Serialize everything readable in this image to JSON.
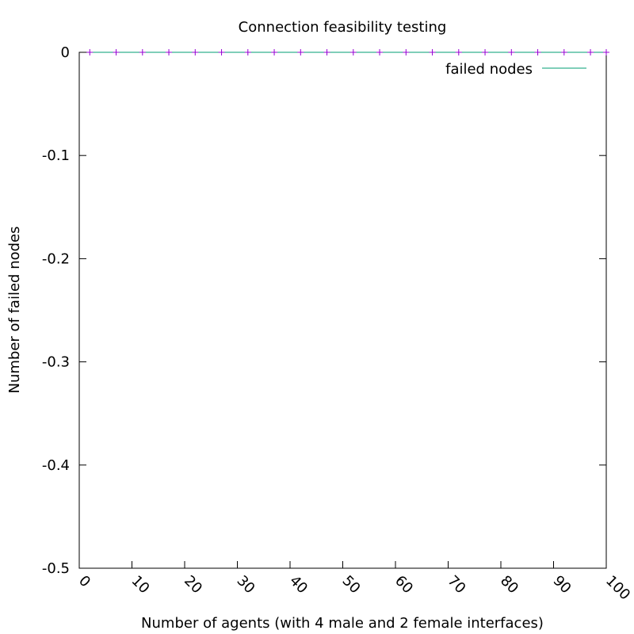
{
  "chart_data": {
    "type": "line",
    "title": "Connection feasibility testing",
    "xlabel": "Number of agents (with 4 male and 2 female interfaces)",
    "ylabel": "Number of failed nodes",
    "xlim": [
      0,
      100
    ],
    "ylim": [
      -0.5,
      0
    ],
    "xticks": [
      0,
      10,
      20,
      30,
      40,
      50,
      60,
      70,
      80,
      90,
      100
    ],
    "xtick_labels": [
      "0",
      "10",
      "20",
      "30",
      "40",
      "50",
      "60",
      "70",
      "80",
      "90",
      "100"
    ],
    "yticks": [
      0,
      -0.1,
      -0.2,
      -0.3,
      -0.4,
      -0.5
    ],
    "ytick_labels": [
      "0",
      "-0.1",
      "-0.2",
      "-0.3",
      "-0.4",
      "-0.5"
    ],
    "grid": false,
    "legend_position": "top-right",
    "series": [
      {
        "name": "failed nodes",
        "color": "#009e73",
        "marker_color": "#9400d3",
        "marker": "plus",
        "x": [
          2,
          7,
          12,
          17,
          22,
          27,
          32,
          37,
          42,
          47,
          52,
          57,
          62,
          67,
          72,
          77,
          82,
          87,
          92,
          97,
          100
        ],
        "y": [
          0,
          0,
          0,
          0,
          0,
          0,
          0,
          0,
          0,
          0,
          0,
          0,
          0,
          0,
          0,
          0,
          0,
          0,
          0,
          0,
          0
        ]
      }
    ]
  }
}
